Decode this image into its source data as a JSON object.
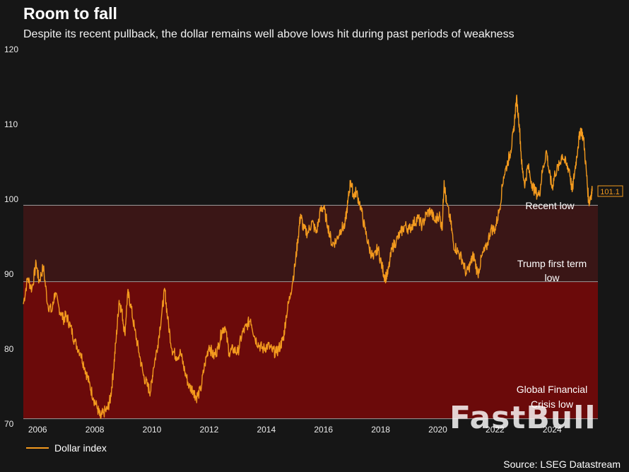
{
  "chart_data": {
    "type": "line",
    "title": "Room to fall",
    "subtitle": "Despite its recent pullback, the dollar remains well above lows hit during past periods of weakness",
    "ylim": [
      70,
      120
    ],
    "yticks": [
      "70",
      "80",
      "90",
      "100",
      "110",
      "120"
    ],
    "xlim": [
      2005.5,
      2025.6
    ],
    "xticks": [
      "2006",
      "2008",
      "2010",
      "2012",
      "2014",
      "2016",
      "2018",
      "2020",
      "2022",
      "2024"
    ],
    "series": [
      {
        "name": "Dollar index",
        "color": "#f39a1e",
        "points": [
          [
            2005.5,
            86.0
          ],
          [
            2005.65,
            89.5
          ],
          [
            2005.8,
            88.0
          ],
          [
            2005.95,
            91.5
          ],
          [
            2006.05,
            89.0
          ],
          [
            2006.2,
            91.0
          ],
          [
            2006.35,
            86.0
          ],
          [
            2006.5,
            85.0
          ],
          [
            2006.6,
            87.5
          ],
          [
            2006.75,
            85.5
          ],
          [
            2006.9,
            84.0
          ],
          [
            2007.0,
            84.5
          ],
          [
            2007.15,
            83.0
          ],
          [
            2007.3,
            81.0
          ],
          [
            2007.5,
            79.5
          ],
          [
            2007.65,
            77.5
          ],
          [
            2007.8,
            75.5
          ],
          [
            2007.95,
            73.5
          ],
          [
            2008.1,
            72.0
          ],
          [
            2008.2,
            70.8
          ],
          [
            2008.3,
            71.5
          ],
          [
            2008.45,
            72.0
          ],
          [
            2008.55,
            73.5
          ],
          [
            2008.65,
            77.0
          ],
          [
            2008.75,
            81.5
          ],
          [
            2008.85,
            86.5
          ],
          [
            2008.95,
            85.0
          ],
          [
            2009.05,
            82.0
          ],
          [
            2009.15,
            87.5
          ],
          [
            2009.25,
            86.0
          ],
          [
            2009.4,
            82.5
          ],
          [
            2009.55,
            79.5
          ],
          [
            2009.7,
            76.5
          ],
          [
            2009.85,
            75.0
          ],
          [
            2009.95,
            74.3
          ],
          [
            2010.05,
            77.5
          ],
          [
            2010.2,
            80.5
          ],
          [
            2010.35,
            85.0
          ],
          [
            2010.45,
            88.0
          ],
          [
            2010.55,
            84.0
          ],
          [
            2010.7,
            80.0
          ],
          [
            2010.85,
            79.0
          ],
          [
            2011.0,
            79.5
          ],
          [
            2011.15,
            77.0
          ],
          [
            2011.3,
            75.0
          ],
          [
            2011.45,
            74.5
          ],
          [
            2011.55,
            73.5
          ],
          [
            2011.7,
            74.5
          ],
          [
            2011.85,
            78.0
          ],
          [
            2012.0,
            80.5
          ],
          [
            2012.15,
            79.0
          ],
          [
            2012.3,
            80.0
          ],
          [
            2012.45,
            82.5
          ],
          [
            2012.55,
            83.0
          ],
          [
            2012.7,
            79.5
          ],
          [
            2012.85,
            80.0
          ],
          [
            2013.0,
            79.5
          ],
          [
            2013.15,
            82.0
          ],
          [
            2013.3,
            83.0
          ],
          [
            2013.45,
            84.0
          ],
          [
            2013.6,
            81.5
          ],
          [
            2013.75,
            80.5
          ],
          [
            2013.9,
            80.0
          ],
          [
            2014.05,
            80.5
          ],
          [
            2014.2,
            79.8
          ],
          [
            2014.35,
            79.5
          ],
          [
            2014.5,
            80.5
          ],
          [
            2014.6,
            81.5
          ],
          [
            2014.7,
            84.5
          ],
          [
            2014.85,
            87.5
          ],
          [
            2015.0,
            91.0
          ],
          [
            2015.1,
            94.5
          ],
          [
            2015.2,
            98.0
          ],
          [
            2015.3,
            96.0
          ],
          [
            2015.45,
            95.5
          ],
          [
            2015.6,
            97.0
          ],
          [
            2015.75,
            95.5
          ],
          [
            2015.9,
            98.5
          ],
          [
            2016.0,
            99.0
          ],
          [
            2016.15,
            96.5
          ],
          [
            2016.3,
            94.0
          ],
          [
            2016.45,
            94.5
          ],
          [
            2016.6,
            96.0
          ],
          [
            2016.75,
            96.5
          ],
          [
            2016.85,
            99.5
          ],
          [
            2016.95,
            102.5
          ],
          [
            2017.05,
            100.5
          ],
          [
            2017.15,
            101.0
          ],
          [
            2017.3,
            99.0
          ],
          [
            2017.45,
            96.0
          ],
          [
            2017.6,
            93.5
          ],
          [
            2017.75,
            92.0
          ],
          [
            2017.9,
            93.5
          ],
          [
            2018.05,
            91.0
          ],
          [
            2018.15,
            89.5
          ],
          [
            2018.25,
            90.0
          ],
          [
            2018.4,
            93.5
          ],
          [
            2018.55,
            94.5
          ],
          [
            2018.7,
            95.5
          ],
          [
            2018.85,
            96.5
          ],
          [
            2019.0,
            96.0
          ],
          [
            2019.15,
            96.8
          ],
          [
            2019.3,
            97.5
          ],
          [
            2019.45,
            96.5
          ],
          [
            2019.6,
            98.0
          ],
          [
            2019.75,
            98.5
          ],
          [
            2019.9,
            97.0
          ],
          [
            2020.05,
            98.0
          ],
          [
            2020.15,
            96.0
          ],
          [
            2020.22,
            102.5
          ],
          [
            2020.3,
            99.5
          ],
          [
            2020.45,
            97.0
          ],
          [
            2020.55,
            94.0
          ],
          [
            2020.7,
            93.0
          ],
          [
            2020.85,
            92.0
          ],
          [
            2021.0,
            90.0
          ],
          [
            2021.15,
            91.5
          ],
          [
            2021.25,
            92.5
          ],
          [
            2021.4,
            90.0
          ],
          [
            2021.55,
            92.5
          ],
          [
            2021.7,
            93.5
          ],
          [
            2021.85,
            96.0
          ],
          [
            2022.0,
            96.0
          ],
          [
            2022.15,
            98.5
          ],
          [
            2022.3,
            103.0
          ],
          [
            2022.45,
            105.0
          ],
          [
            2022.55,
            106.5
          ],
          [
            2022.65,
            109.0
          ],
          [
            2022.75,
            113.5
          ],
          [
            2022.85,
            110.0
          ],
          [
            2022.95,
            104.0
          ],
          [
            2023.05,
            102.0
          ],
          [
            2023.15,
            104.5
          ],
          [
            2023.3,
            102.0
          ],
          [
            2023.4,
            101.0
          ],
          [
            2023.55,
            100.5
          ],
          [
            2023.65,
            103.5
          ],
          [
            2023.8,
            106.5
          ],
          [
            2023.9,
            103.5
          ],
          [
            2024.0,
            101.5
          ],
          [
            2024.1,
            103.5
          ],
          [
            2024.25,
            104.5
          ],
          [
            2024.35,
            106.0
          ],
          [
            2024.5,
            104.5
          ],
          [
            2024.6,
            104.0
          ],
          [
            2024.7,
            101.0
          ],
          [
            2024.8,
            104.0
          ],
          [
            2024.9,
            107.0
          ],
          [
            2025.0,
            109.5
          ],
          [
            2025.1,
            108.0
          ],
          [
            2025.2,
            103.5
          ],
          [
            2025.28,
            99.5
          ],
          [
            2025.35,
            100.5
          ],
          [
            2025.4,
            101.1
          ]
        ]
      }
    ],
    "reference_lines": [
      {
        "value": 99.2,
        "label": "Recent low"
      },
      {
        "value": 89.0,
        "label": "Trump first term low"
      },
      {
        "value": 70.7,
        "label": "Global Financial Crisis low"
      }
    ],
    "last_value_label": "101.1"
  },
  "annotations": {
    "recent_low": "Recent low",
    "trump_low_line1": "Trump first term",
    "trump_low_line2": "low",
    "gfc_low_line1": "Global Financial",
    "gfc_low_line2": "Crisis low"
  },
  "legend": {
    "label": "Dollar index"
  },
  "source": "Source: LSEG Datastream",
  "watermark": "FastBull"
}
